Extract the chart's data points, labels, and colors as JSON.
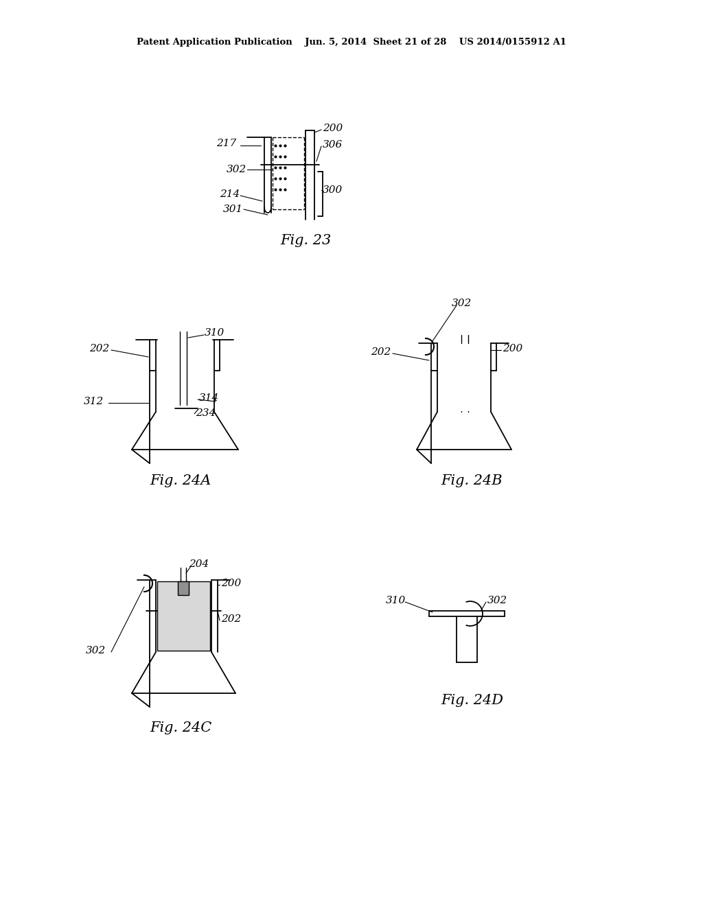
{
  "header": "Patent Application Publication    Jun. 5, 2014  Sheet 21 of 28    US 2014/0155912 A1",
  "fig23_title": "Fig. 23",
  "fig24a_title": "Fig. 24A",
  "fig24b_title": "Fig. 24B",
  "fig24c_title": "Fig. 24C",
  "fig24d_title": "Fig. 24D"
}
